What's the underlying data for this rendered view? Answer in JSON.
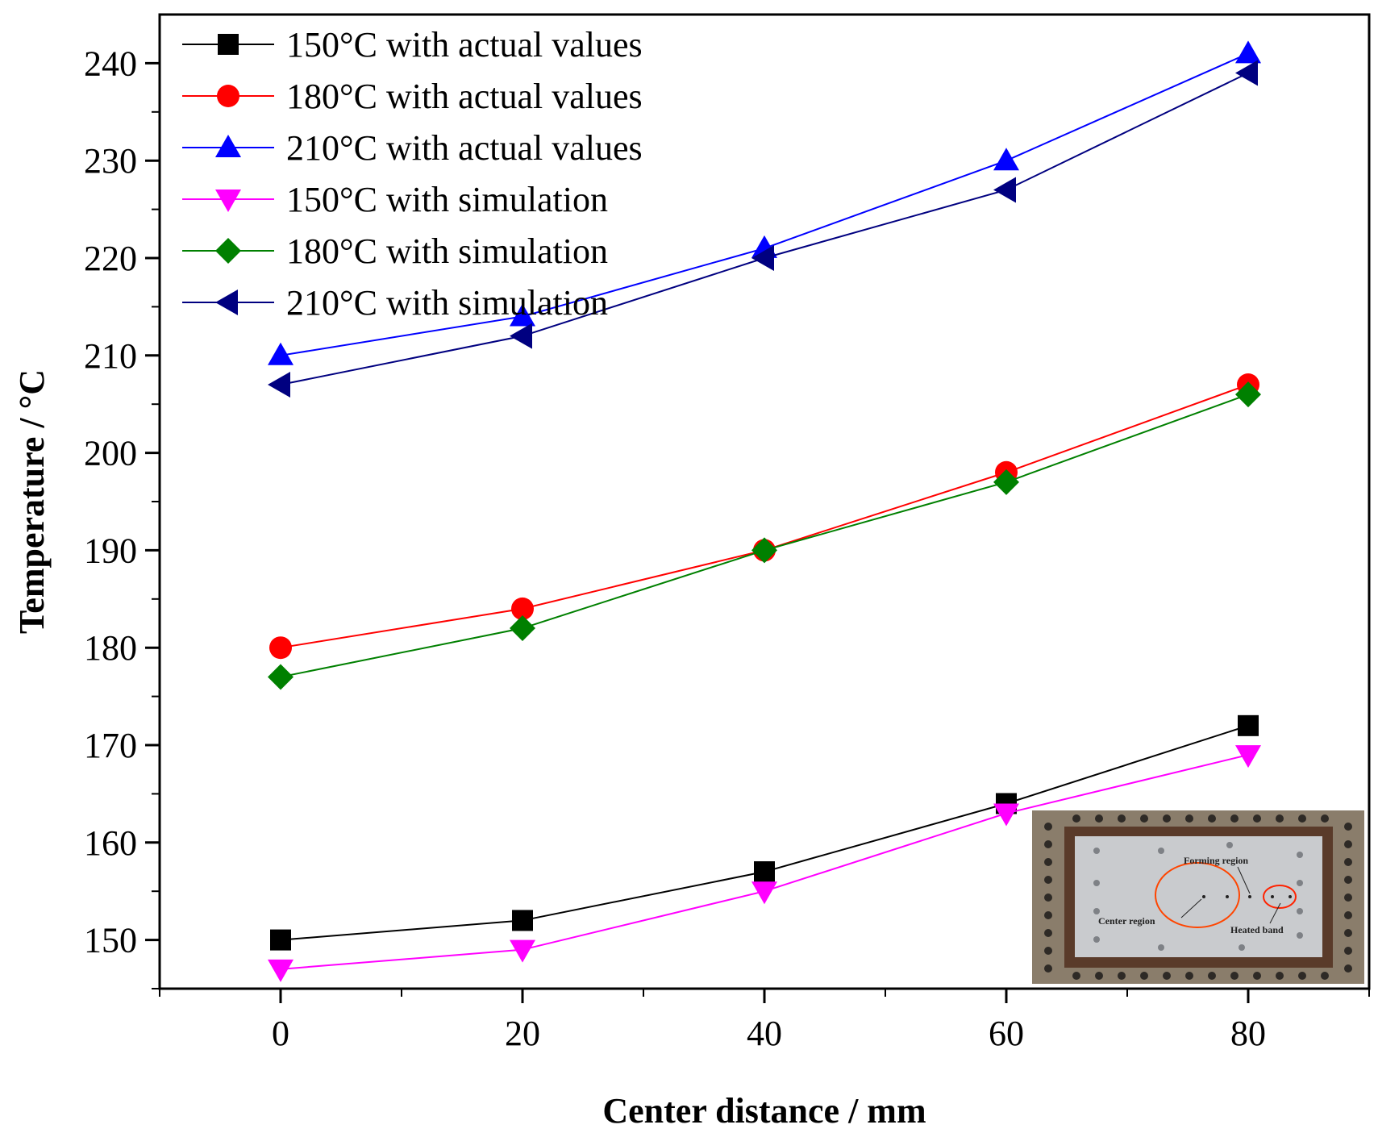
{
  "chart_data": {
    "type": "line",
    "title": "",
    "xlabel": "Center distance / mm",
    "ylabel": "Temperature / °C",
    "xlim": [
      -10,
      90
    ],
    "ylim": [
      145,
      245
    ],
    "x_ticks": [
      0,
      20,
      40,
      60,
      80
    ],
    "x_minor_ticks": [
      -10,
      10,
      30,
      50,
      70,
      90
    ],
    "y_ticks": [
      150,
      160,
      170,
      180,
      190,
      200,
      210,
      220,
      230,
      240
    ],
    "x": [
      0,
      20,
      40,
      60,
      80
    ],
    "legend_position": "top-left",
    "series": [
      {
        "name": "150°C with actual values",
        "values": [
          150,
          152,
          157,
          164,
          172
        ],
        "color": "#000000",
        "marker": "square"
      },
      {
        "name": "180°C with actual values",
        "values": [
          180,
          184,
          190,
          198,
          207
        ],
        "color": "#ff0000",
        "marker": "circle"
      },
      {
        "name": "210°C with actual values",
        "values": [
          210,
          214,
          221,
          230,
          241
        ],
        "color": "#0000ff",
        "marker": "triangle-up"
      },
      {
        "name": "150°C with simulation",
        "values": [
          147,
          149,
          155,
          163,
          169
        ],
        "color": "#ff00ff",
        "marker": "triangle-down"
      },
      {
        "name": "180°C with simulation",
        "values": [
          177,
          182,
          190,
          197,
          206
        ],
        "color": "#008000",
        "marker": "diamond"
      },
      {
        "name": "210°C with simulation",
        "values": [
          207,
          212,
          220,
          227,
          239
        ],
        "color": "#000080",
        "marker": "triangle-left"
      }
    ],
    "inset": {
      "labels": [
        "Forming region",
        "Center region",
        "Heated band"
      ],
      "annotation_color": "#ff4500"
    }
  }
}
